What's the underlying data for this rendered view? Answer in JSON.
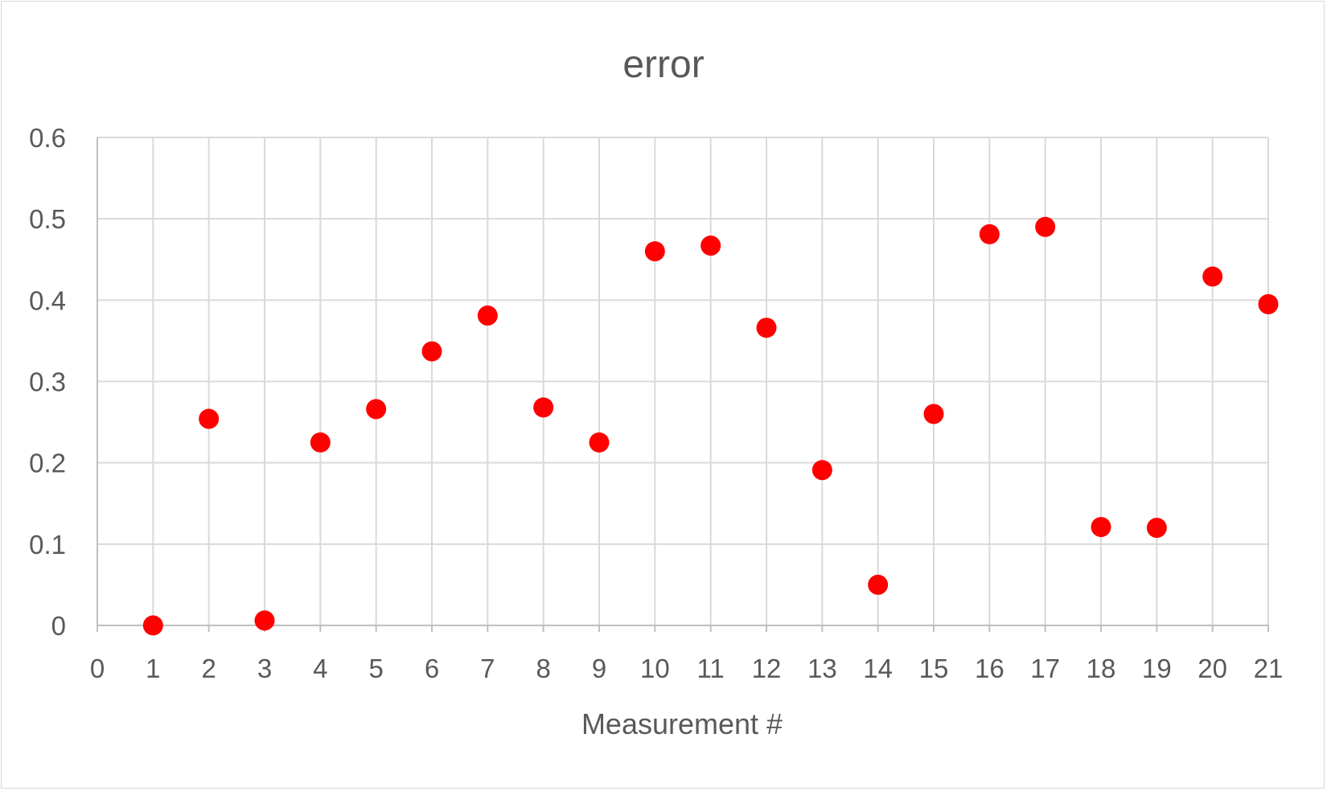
{
  "chart_data": {
    "type": "scatter",
    "title": "error",
    "xlabel": "Measurement #",
    "ylabel": "",
    "xlim": [
      0,
      21
    ],
    "ylim": [
      0,
      0.6
    ],
    "x_ticks": [
      0,
      1,
      2,
      3,
      4,
      5,
      6,
      7,
      8,
      9,
      10,
      11,
      12,
      13,
      14,
      15,
      16,
      17,
      18,
      19,
      20,
      21
    ],
    "y_ticks": [
      "0",
      "0.1",
      "0.2",
      "0.3",
      "0.4",
      "0.5",
      "0.6"
    ],
    "grid": true,
    "legend": "none",
    "marker_color": "#ff0000",
    "series": [
      {
        "x": [
          1,
          2,
          3,
          4,
          5,
          6,
          7,
          8,
          9,
          10,
          11,
          12,
          13,
          14,
          15,
          16,
          17,
          18,
          19,
          20,
          21
        ],
        "y": [
          0.0,
          0.254,
          0.006,
          0.225,
          0.266,
          0.337,
          0.381,
          0.268,
          0.225,
          0.46,
          0.467,
          0.366,
          0.191,
          0.05,
          0.26,
          0.481,
          0.49,
          0.121,
          0.12,
          0.429,
          0.395
        ]
      }
    ]
  }
}
